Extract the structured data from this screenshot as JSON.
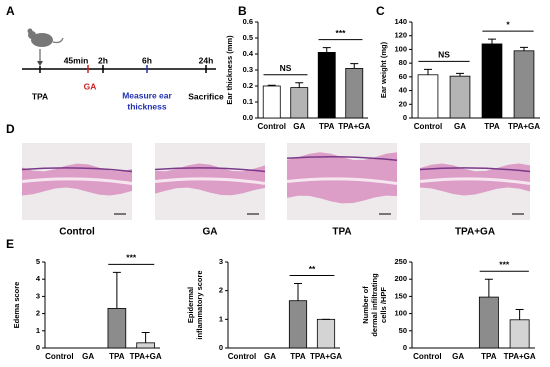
{
  "panel_labels": [
    "A",
    "B",
    "C",
    "D",
    "E"
  ],
  "timeline": {
    "start": "TPA",
    "t1": "45min",
    "t1_event": "GA",
    "t2": "2h",
    "t3": "6h",
    "t3_event": [
      "Measure ear",
      "thickness"
    ],
    "t4": "24h",
    "t4_event": "Sacrifice"
  },
  "histology": {
    "labels": [
      "Control",
      "GA",
      "TPA",
      "TPA+GA"
    ]
  },
  "chart_data": [
    {
      "type": "bar",
      "y_label": "Ear thickness (mm)",
      "categories": [
        "Control",
        "GA",
        "TPA",
        "TPA+GA"
      ],
      "values": [
        0.2,
        0.19,
        0.41,
        0.31
      ],
      "errors": [
        0.005,
        0.03,
        0.03,
        0.03
      ],
      "colors": [
        "#ffffff",
        "#b4b4b4",
        "#000000",
        "#8c8c8c"
      ],
      "ylim": [
        0,
        0.6
      ],
      "yticks": [
        {
          "value": 0,
          "label": "0.0"
        },
        0.1,
        0.2,
        0.3,
        0.4,
        0.5,
        0.6
      ],
      "annotations": [
        "NS",
        "***"
      ]
    },
    {
      "type": "bar",
      "y_label": "Ear weight (mg)",
      "categories": [
        "Control",
        "GA",
        "TPA",
        "TPA+GA"
      ],
      "values": [
        63,
        61,
        108,
        98
      ],
      "errors": [
        8,
        4,
        7,
        5
      ],
      "colors": [
        "#ffffff",
        "#b4b4b4",
        "#000000",
        "#8c8c8c"
      ],
      "ylim": [
        0,
        140
      ],
      "yticks": [
        0,
        20,
        40,
        60,
        80,
        100,
        120,
        140
      ],
      "annotations": [
        "NS",
        "*"
      ]
    },
    {
      "type": "bar",
      "y_label": "Edema score",
      "categories": [
        "Control",
        "GA",
        "TPA",
        "TPA+GA"
      ],
      "values": [
        0,
        0,
        2.3,
        0.3
      ],
      "errors": [
        0,
        0,
        2.1,
        0.6
      ],
      "colors": [
        "#ffffff",
        "#ffffff",
        "#8c8c8c",
        "#d4d4d4"
      ],
      "ylim": [
        0,
        5
      ],
      "yticks": [
        0,
        1,
        2,
        3,
        4,
        5
      ],
      "annotations": [
        "***"
      ]
    },
    {
      "type": "bar",
      "y_label": [
        "Epidermal",
        "inflammatory score"
      ],
      "categories": [
        "Control",
        "GA",
        "TPA",
        "TPA+GA"
      ],
      "values": [
        0,
        0,
        1.65,
        1.0
      ],
      "errors": [
        0,
        0,
        0.6,
        0
      ],
      "colors": [
        "#ffffff",
        "#ffffff",
        "#8c8c8c",
        "#d4d4d4"
      ],
      "ylim": [
        0,
        3
      ],
      "yticks": [
        0,
        1,
        2,
        3
      ],
      "annotations": [
        "**"
      ]
    },
    {
      "type": "bar",
      "y_label": [
        "Number of",
        "dermal infiltrating",
        "cells /HPF"
      ],
      "categories": [
        "Control",
        "GA",
        "TPA",
        "TPA+GA"
      ],
      "values": [
        0,
        0,
        148,
        82
      ],
      "errors": [
        0,
        0,
        52,
        30
      ],
      "colors": [
        "#ffffff",
        "#ffffff",
        "#8c8c8c",
        "#d4d4d4"
      ],
      "ylim": [
        0,
        250
      ],
      "yticks": [
        0,
        50,
        100,
        150,
        200,
        250
      ],
      "annotations": [
        "***"
      ]
    }
  ]
}
